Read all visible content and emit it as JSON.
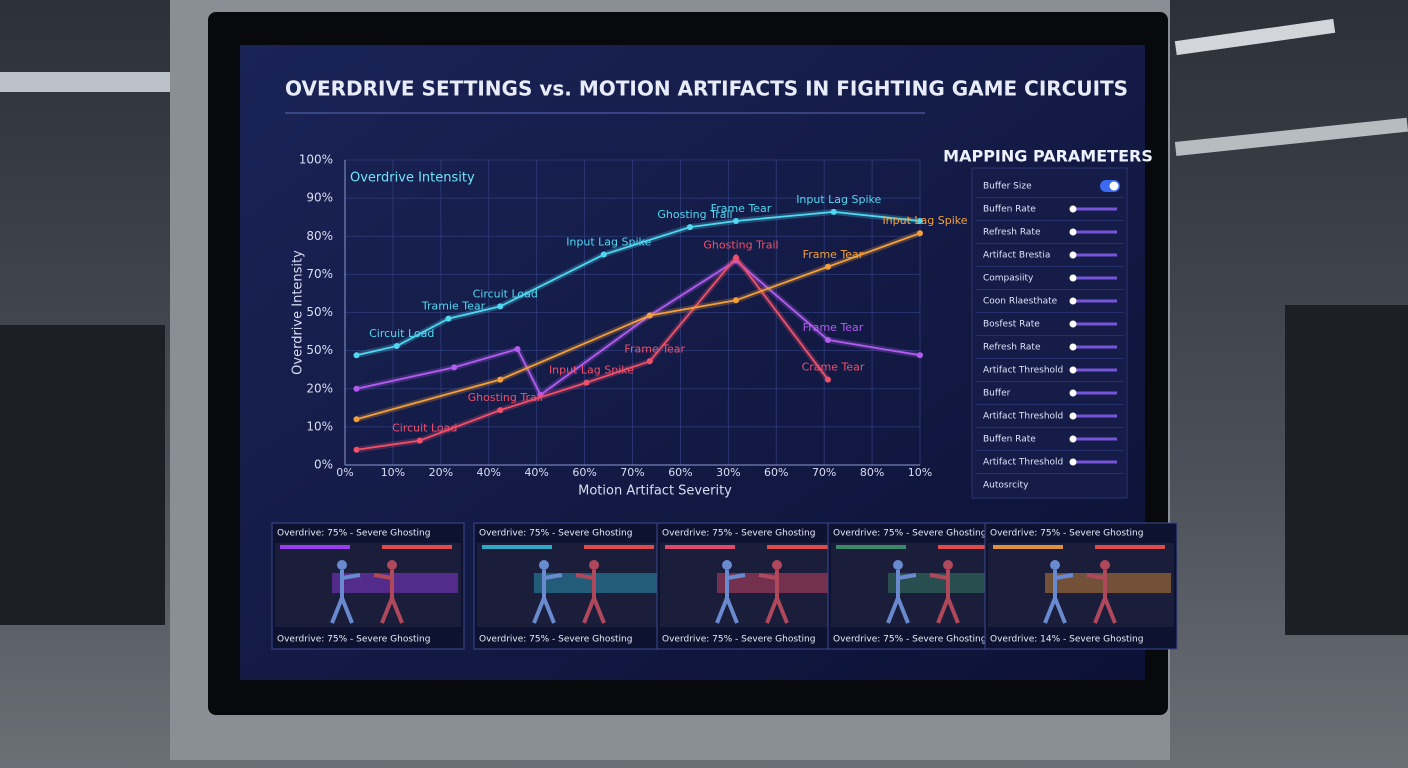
{
  "chart_data": {
    "type": "line",
    "title": "OVERDRIVE SETTINGS vs. MOTION ARTIFACTS IN FIGHTING GAME CIRCUITS",
    "legend_label": "Overdrive Intensity",
    "y_label": "Overdrive Intensity",
    "x_label": "Motion Artifact Severity",
    "y_axis_labels": [
      "100%",
      "90%",
      "80%",
      "70%",
      "50%",
      "50%",
      "20%",
      "10%",
      "0%"
    ],
    "x_axis_labels": [
      "0%",
      "10%",
      "20%",
      "40%",
      "40%",
      "60%",
      "70%",
      "60%",
      "30%",
      "60%",
      "70%",
      "80%",
      "10%"
    ],
    "xlim": [
      0,
      100
    ],
    "ylim": [
      0,
      100
    ],
    "grid": true,
    "series": [
      {
        "name": "cyan",
        "color": "#4fd8f0",
        "x": [
          2,
          9,
          18,
          27,
          45,
          60,
          68,
          85,
          100
        ],
        "values": [
          36,
          39,
          48,
          52,
          69,
          78,
          80,
          83,
          80
        ],
        "labels": [
          null,
          "Circuit Load",
          "Tramie Tear",
          "Circuit Load",
          "Input Lag Spike",
          "Ghosting Trail",
          "Frame Tear",
          "Input Lag Spike",
          null
        ]
      },
      {
        "name": "purple",
        "color": "#b45cf0",
        "x": [
          2,
          19,
          30,
          34,
          53,
          68,
          84,
          100
        ],
        "values": [
          25,
          32,
          38,
          23,
          49,
          67,
          41,
          36
        ],
        "labels": [
          null,
          null,
          null,
          null,
          null,
          null,
          "Frame Tear",
          null
        ]
      },
      {
        "name": "red",
        "color": "#f0506a",
        "x": [
          2,
          13,
          27,
          42,
          53,
          68,
          84
        ],
        "values": [
          5,
          8,
          18,
          27,
          34,
          68,
          28
        ],
        "labels": [
          null,
          "Circuit Load",
          "Ghosting Trail",
          "Input Lag Spike",
          "Frame Tear",
          "Ghosting Trail",
          "Crame Tear"
        ]
      },
      {
        "name": "orange",
        "color": "#f4a03a",
        "x": [
          2,
          27,
          53,
          68,
          84,
          100
        ],
        "values": [
          15,
          28,
          49,
          54,
          65,
          76
        ],
        "labels": [
          null,
          null,
          null,
          null,
          "Frame Tear",
          "Input Lag Spike"
        ]
      }
    ]
  },
  "panel": {
    "title": "MAPPING PARAMETERS",
    "rows": [
      {
        "label": "Buffer Size",
        "control": "toggle"
      },
      {
        "label": "Buffen Rate",
        "control": "slider"
      },
      {
        "label": "Refresh Rate",
        "control": "slider"
      },
      {
        "label": "Artifact Brestia",
        "control": "slider"
      },
      {
        "label": "Compasiity",
        "control": "slider"
      },
      {
        "label": "Coon Rlaesthate",
        "control": "slider"
      },
      {
        "label": "Bosfest Rate",
        "control": "slider"
      },
      {
        "label": "Refresh Rate",
        "control": "slider"
      },
      {
        "label": "Artifact Threshold",
        "control": "slider"
      },
      {
        "label": "Buffer",
        "control": "slider"
      },
      {
        "label": "Artifact Threshold",
        "control": "slider"
      },
      {
        "label": "Buffen Rate",
        "control": "slider"
      },
      {
        "label": "Artifact Threshold",
        "control": "slider"
      },
      {
        "label": "Autosrcity",
        "control": "none"
      }
    ]
  },
  "thumbnails": [
    {
      "top": "Overdrive: 75% - Severe Ghosting",
      "bottom": "Overdrive: 75% - Severe Ghosting",
      "color": "#9a3cf0"
    },
    {
      "top": "Overdrive: 75% - Severe Ghosting",
      "bottom": "Overdrive: 75% - Severe Ghosting",
      "color": "#2fa8c8"
    },
    {
      "top": "Overdrive: 75% - Severe Ghosting",
      "bottom": "Overdrive: 75% - Severe Ghosting",
      "color": "#e04a6a"
    },
    {
      "top": "Overdrive: 75% - Severe Ghosting",
      "bottom": "Overdrive: 75% - Severe Ghosting",
      "color": "#3a8a6a"
    },
    {
      "top": "Overdrive: 75% - Severe Ghosting",
      "bottom": "Overdrive: 14% - Severe Ghosting",
      "color": "#e0903a"
    }
  ]
}
